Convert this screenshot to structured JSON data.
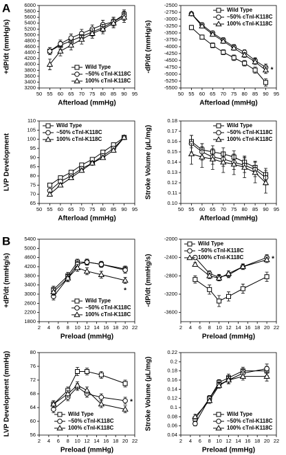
{
  "panel_labels": [
    "A",
    "B"
  ],
  "chart_data": [
    {
      "type": "line",
      "xlabel": "Afterload (mmHg)",
      "ylabel": "+dP/dt (mmHg/s)",
      "legend": "lower-right",
      "x": [
        55,
        60,
        65,
        70,
        75,
        80,
        85,
        90
      ],
      "xlim": [
        50,
        95
      ],
      "xticks": [
        50,
        55,
        60,
        65,
        70,
        75,
        80,
        85,
        90,
        95
      ],
      "ylim": [
        3200,
        6000
      ],
      "yticks": [
        3200,
        3400,
        3600,
        3800,
        4000,
        4200,
        4400,
        4600,
        4800,
        5000,
        5200,
        5400,
        5600,
        5800,
        6000
      ],
      "series": [
        {
          "name": "Wild Type",
          "marker": "square",
          "color": "#000000",
          "values": [
            4450,
            4650,
            4800,
            4950,
            5100,
            5250,
            5450,
            5700
          ],
          "errors": [
            120,
            130,
            130,
            140,
            140,
            150,
            150,
            150
          ]
        },
        {
          "name": "~50% cTnI-K118C",
          "marker": "circle",
          "color": "#000000",
          "values": [
            4450,
            4700,
            4900,
            5050,
            5200,
            5350,
            5450,
            5650
          ],
          "errors": [
            120,
            130,
            130,
            140,
            140,
            150,
            150,
            150
          ]
        },
        {
          "name": "100% cTnI-K118C",
          "marker": "triangle",
          "color": "#000000",
          "values": [
            4000,
            4450,
            4650,
            4850,
            5050,
            5200,
            5400,
            5600
          ],
          "errors": [
            180,
            160,
            160,
            160,
            160,
            160,
            160,
            170
          ]
        }
      ]
    },
    {
      "type": "line",
      "xlabel": "Afterload (mmHg)",
      "ylabel": "-dP/dt (mmHg/s)",
      "legend": "upper-right",
      "annotation": "*",
      "x": [
        55,
        60,
        65,
        70,
        75,
        80,
        85,
        90
      ],
      "xlim": [
        50,
        95
      ],
      "xticks": [
        50,
        55,
        60,
        65,
        70,
        75,
        80,
        85,
        90,
        95
      ],
      "ylim": [
        -5500,
        -2500
      ],
      "yticks": [
        -5500,
        -5250,
        -5000,
        -4750,
        -4500,
        -4250,
        -4000,
        -3750,
        -3500,
        -3250,
        -3000,
        -2750,
        -2500
      ],
      "series": [
        {
          "name": "Wild Type",
          "marker": "square",
          "color": "#000000",
          "values": [
            -3300,
            -3650,
            -3950,
            -4200,
            -4400,
            -4600,
            -4850,
            -5300
          ],
          "errors": [
            80,
            80,
            90,
            90,
            100,
            100,
            110,
            130
          ]
        },
        {
          "name": "~50% cTnI-K118C",
          "marker": "circle",
          "color": "#000000",
          "values": [
            -2800,
            -3200,
            -3500,
            -3750,
            -4000,
            -4200,
            -4500,
            -4750
          ],
          "errors": [
            60,
            70,
            70,
            80,
            80,
            90,
            100,
            120
          ]
        },
        {
          "name": "100% cTnI-K118C",
          "marker": "triangle",
          "color": "#000000",
          "values": [
            -2800,
            -3250,
            -3550,
            -3800,
            -4050,
            -4300,
            -4550,
            -4850
          ],
          "errors": [
            60,
            70,
            70,
            80,
            80,
            90,
            100,
            120
          ]
        }
      ]
    },
    {
      "type": "line",
      "xlabel": "Afterload (mmHg)",
      "ylabel": "LVP Development",
      "legend": "upper-left",
      "x": [
        55,
        60,
        65,
        70,
        75,
        80,
        85,
        90
      ],
      "xlim": [
        50,
        95
      ],
      "xticks": [
        50,
        55,
        60,
        65,
        70,
        75,
        80,
        85,
        90,
        95
      ],
      "ylim": [
        65,
        110
      ],
      "yticks": [
        65,
        70,
        75,
        80,
        85,
        90,
        95,
        100,
        105,
        110
      ],
      "series": [
        {
          "name": "Wild Type",
          "marker": "square",
          "color": "#000000",
          "values": [
            75,
            79,
            82,
            86,
            89,
            93,
            97,
            101
          ],
          "errors": [
            1,
            1,
            1,
            1,
            1,
            1,
            1,
            1
          ]
        },
        {
          "name": "~50% cTnI-K118C",
          "marker": "circle",
          "color": "#000000",
          "values": [
            72,
            77,
            80,
            84,
            87,
            91,
            95,
            101
          ],
          "errors": [
            1,
            1,
            1,
            1,
            1,
            1,
            1,
            1
          ]
        },
        {
          "name": "100% cTnI-K118C",
          "marker": "triangle",
          "color": "#000000",
          "values": [
            70,
            75,
            79,
            83,
            87,
            90,
            94,
            101
          ],
          "errors": [
            1,
            1,
            1,
            1,
            1,
            1,
            1,
            1
          ]
        }
      ]
    },
    {
      "type": "line",
      "xlabel": "Afterload (mmHg)",
      "ylabel": "Stroke Volume (µL/mg)",
      "legend": "upper-right",
      "x": [
        55,
        60,
        65,
        70,
        75,
        80,
        85,
        90
      ],
      "xlim": [
        50,
        95
      ],
      "xticks": [
        50,
        55,
        60,
        65,
        70,
        75,
        80,
        85,
        90,
        95
      ],
      "ylim": [
        0.1,
        0.18
      ],
      "yticks": [
        {
          "value": 0.1,
          "label": "0.10"
        },
        0.11,
        0.12,
        0.13,
        0.14,
        0.15,
        0.16,
        0.17,
        0.18
      ],
      "series": [
        {
          "name": "Wild Type",
          "marker": "square",
          "color": "#000000",
          "values": [
            0.16,
            0.152,
            0.15,
            0.148,
            0.145,
            0.14,
            0.135,
            0.128
          ],
          "errors": [
            0.006,
            0.006,
            0.006,
            0.006,
            0.006,
            0.006,
            0.006,
            0.006
          ]
        },
        {
          "name": "~50% cTnI-K118C",
          "marker": "circle",
          "color": "#000000",
          "values": [
            0.158,
            0.15,
            0.145,
            0.143,
            0.14,
            0.137,
            0.133,
            0.125
          ],
          "errors": [
            0.008,
            0.008,
            0.007,
            0.007,
            0.007,
            0.007,
            0.007,
            0.007
          ]
        },
        {
          "name": "100% cTnI-K118C",
          "marker": "triangle",
          "color": "#000000",
          "values": [
            0.148,
            0.145,
            0.143,
            0.14,
            0.138,
            0.135,
            0.13,
            0.12
          ],
          "errors": [
            0.01,
            0.01,
            0.01,
            0.01,
            0.01,
            0.01,
            0.01,
            0.01
          ]
        }
      ]
    },
    {
      "type": "line",
      "xlabel": "Preload (mmHg)",
      "ylabel": "+dP/dt (mmHg/s)",
      "legend": "lower-right",
      "annotation": "*",
      "x": [
        5,
        8,
        10,
        12,
        15,
        20
      ],
      "xlim": [
        2,
        22
      ],
      "xticks": [
        2,
        4,
        6,
        8,
        10,
        12,
        14,
        16,
        18,
        20,
        22
      ],
      "ylim": [
        1800,
        5400
      ],
      "yticks": [
        1800,
        2200,
        2600,
        3000,
        3400,
        3800,
        4200,
        4600,
        5000,
        5400
      ],
      "series": [
        {
          "name": "Wild Type",
          "marker": "square",
          "color": "#000000",
          "values": [
            3200,
            3800,
            4400,
            4400,
            4300,
            4100
          ],
          "errors": [
            150,
            150,
            130,
            130,
            130,
            130
          ]
        },
        {
          "name": "~50% cTnI-K118C",
          "marker": "circle",
          "color": "#000000",
          "values": [
            2900,
            3700,
            4300,
            4400,
            4300,
            4050
          ],
          "errors": [
            150,
            150,
            130,
            130,
            130,
            130
          ]
        },
        {
          "name": "100% cTnI-K118C",
          "marker": "triangle",
          "color": "#000000",
          "values": [
            3100,
            3700,
            4150,
            4000,
            3850,
            3600
          ],
          "errors": [
            150,
            150,
            150,
            150,
            150,
            130
          ]
        }
      ]
    },
    {
      "type": "line",
      "xlabel": "Preload (mmHg)",
      "ylabel": "-dP/dt (mmHg/s)",
      "legend": "upper-left",
      "annotation": "*",
      "x": [
        5,
        8,
        10,
        12,
        15,
        20
      ],
      "xlim": [
        2,
        22
      ],
      "xticks": [
        2,
        4,
        6,
        8,
        10,
        12,
        14,
        16,
        18,
        20,
        22
      ],
      "ylim": [
        -3800,
        -2000
      ],
      "yticks": [
        -3600,
        -3200,
        -2800,
        -2400,
        -2000
      ],
      "series": [
        {
          "name": "Wild Type",
          "marker": "square",
          "color": "#000000",
          "values": [
            -2880,
            -3100,
            -3350,
            -3250,
            -3080,
            -2820
          ],
          "errors": [
            80,
            100,
            120,
            100,
            100,
            100
          ]
        },
        {
          "name": "~50% cTnI-K118C",
          "marker": "circle",
          "color": "#000000",
          "values": [
            -2400,
            -2750,
            -2830,
            -2780,
            -2600,
            -2400
          ],
          "errors": [
            40,
            60,
            60,
            60,
            60,
            60
          ]
        },
        {
          "name": "100% cTnI-K118C",
          "marker": "triangle",
          "color": "#000000",
          "values": [
            -2550,
            -2800,
            -2850,
            -2750,
            -2600,
            -2450
          ],
          "errors": [
            40,
            60,
            60,
            60,
            60,
            60
          ]
        }
      ]
    },
    {
      "type": "line",
      "xlabel": "Preload (mmHg)",
      "ylabel": "LVP Development (mmHg)",
      "legend": "lower-center",
      "annotation": "*",
      "x": [
        5,
        8,
        10,
        12,
        15,
        20
      ],
      "xlim": [
        2,
        22
      ],
      "xticks": [
        2,
        4,
        6,
        8,
        10,
        12,
        14,
        16,
        18,
        20,
        22
      ],
      "ylim": [
        56,
        80
      ],
      "yticks": [
        56,
        60,
        64,
        68,
        72,
        76,
        80
      ],
      "series": [
        {
          "name": "Wild Type",
          "marker": "square",
          "color": "#000000",
          "values": [
            65,
            69,
            74.5,
            74.5,
            73.5,
            71
          ],
          "errors": [
            1,
            1,
            1.2,
            1,
            1,
            1
          ]
        },
        {
          "name": "~50% cTnI-K118C",
          "marker": "circle",
          "color": "#000000",
          "values": [
            63.5,
            67,
            70,
            68,
            67,
            66
          ],
          "errors": [
            1,
            1,
            1,
            1,
            1,
            1
          ]
        },
        {
          "name": "100% cTnI-K118C",
          "marker": "triangle",
          "color": "#000000",
          "values": [
            65,
            68,
            70.5,
            69,
            65,
            63.5
          ],
          "errors": [
            1,
            1,
            1,
            1,
            1,
            1
          ]
        }
      ]
    },
    {
      "type": "line",
      "xlabel": "Preload (mmHg)",
      "ylabel": "Stroke Volume (µL/mg)",
      "legend": "lower-right",
      "x": [
        5,
        8,
        10,
        12,
        15,
        20
      ],
      "xlim": [
        2,
        22
      ],
      "xticks": [
        2,
        4,
        6,
        8,
        10,
        12,
        14,
        16,
        18,
        20,
        22
      ],
      "ylim": [
        0.04,
        0.22
      ],
      "yticks": [
        0.04,
        0.06,
        0.08,
        0.1,
        0.12,
        0.14,
        0.16,
        0.18,
        0.2,
        0.22
      ],
      "series": [
        {
          "name": "Wild Type",
          "marker": "square",
          "color": "#000000",
          "values": [
            0.075,
            0.12,
            0.155,
            0.165,
            0.18,
            0.18
          ],
          "errors": [
            0.005,
            0.006,
            0.006,
            0.008,
            0.008,
            0.01
          ]
        },
        {
          "name": "~50% cTnI-K118C",
          "marker": "circle",
          "color": "#000000",
          "values": [
            0.065,
            0.12,
            0.15,
            0.16,
            0.175,
            0.185
          ],
          "errors": [
            0.005,
            0.006,
            0.006,
            0.008,
            0.008,
            0.01
          ]
        },
        {
          "name": "100% cTnI-K118C",
          "marker": "triangle",
          "color": "#000000",
          "values": [
            0.08,
            0.115,
            0.148,
            0.16,
            0.168,
            0.168
          ],
          "errors": [
            0.005,
            0.006,
            0.006,
            0.008,
            0.008,
            0.01
          ]
        }
      ]
    }
  ]
}
